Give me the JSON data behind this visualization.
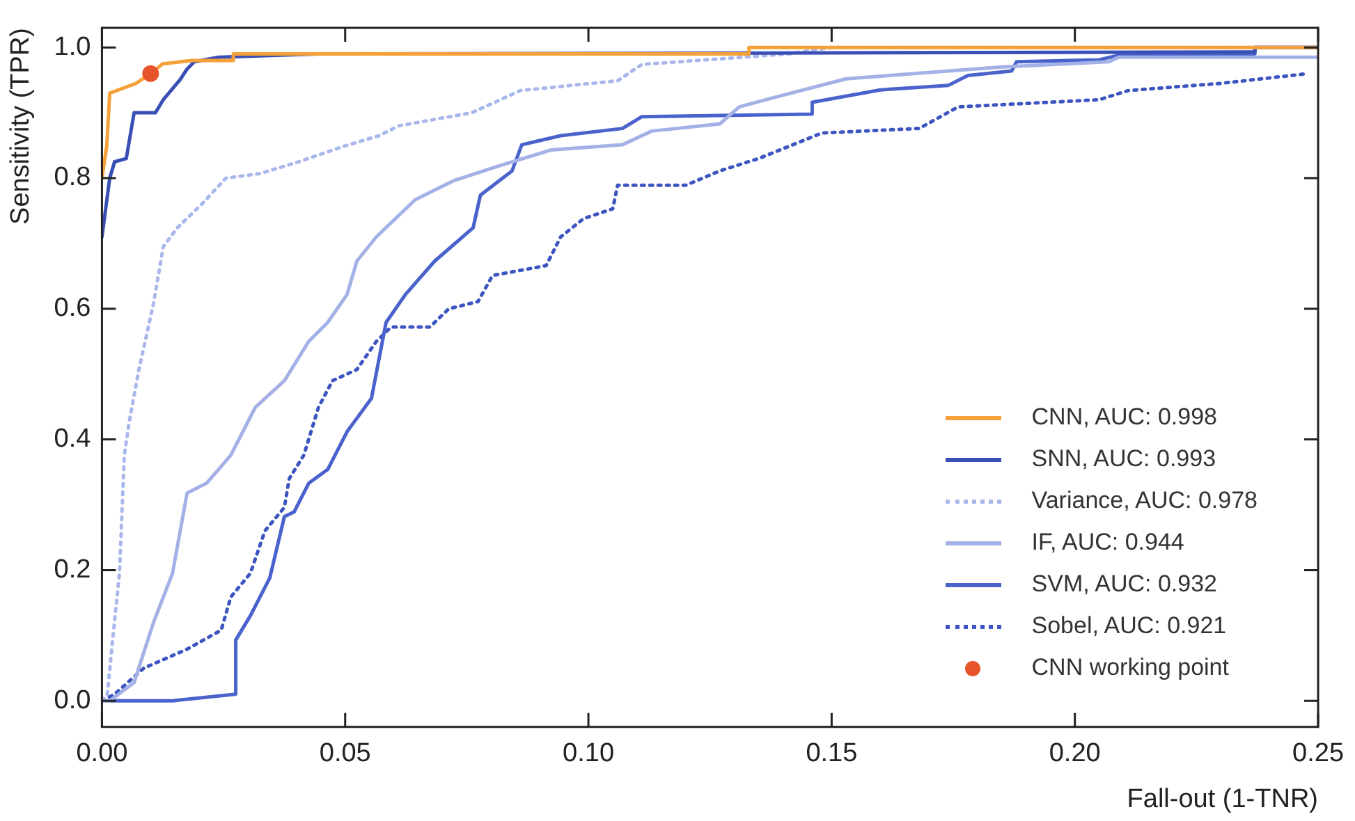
{
  "chart_data": {
    "type": "line",
    "xlabel": "Fall-out (1-TNR)",
    "ylabel": "Sensitivity (TPR)",
    "xlim": [
      0,
      0.25
    ],
    "ylim": [
      -0.04,
      1.03
    ],
    "xticks": [
      {
        "value": 0,
        "label": "0.00"
      },
      {
        "value": 0.05,
        "label": "0.05"
      },
      {
        "value": 0.1,
        "label": "0.10"
      },
      {
        "value": 0.15,
        "label": "0.15"
      },
      {
        "value": 0.2,
        "label": "0.20"
      },
      {
        "value": 0.25,
        "label": "0.25"
      }
    ],
    "yticks": [
      {
        "value": 0,
        "label": "0.0"
      },
      {
        "value": 0.2,
        "label": "0.2"
      },
      {
        "value": 0.4,
        "label": "0.4"
      },
      {
        "value": 0.6,
        "label": "0.6"
      },
      {
        "value": 0.8,
        "label": "0.8"
      },
      {
        "value": 1,
        "label": "1.0"
      }
    ],
    "grid": false,
    "legend": "bottom right",
    "marker": "none",
    "series": [
      {
        "name": "CNN, AUC: 0.998",
        "color": "#f5a13a",
        "line_style": "solid",
        "x": [
          0,
          0.001,
          0.0016,
          0.007,
          0.01,
          0.0125,
          0.0185,
          0.027,
          0.027,
          0.133,
          0.133,
          0.25
        ],
        "values": [
          0.8,
          0.85,
          0.93,
          0.945,
          0.96,
          0.975,
          0.98,
          0.98,
          0.99,
          0.99,
          1.0,
          1.0
        ]
      },
      {
        "name": "SNN, AUC: 0.993",
        "color": "#3a4fb5",
        "line_style": "solid",
        "x": [
          0,
          0.0016,
          0.0026,
          0.005,
          0.0066,
          0.011,
          0.0126,
          0.016,
          0.0175,
          0.019,
          0.024,
          0.0445,
          0.237,
          0.237,
          0.25
        ],
        "values": [
          0.71,
          0.8,
          0.825,
          0.83,
          0.9,
          0.9,
          0.92,
          0.95,
          0.967,
          0.978,
          0.985,
          0.99,
          0.993,
          1.0,
          1.0
        ]
      },
      {
        "name": "Variance, AUC: 0.978",
        "color": "#a9b8ec",
        "line_style": "dotted",
        "x": [
          0,
          0.0011,
          0.0021,
          0.0036,
          0.0046,
          0.0056,
          0.0076,
          0.0106,
          0.0126,
          0.0155,
          0.0205,
          0.0255,
          0.0325,
          0.0405,
          0.049,
          0.057,
          0.061,
          0.076,
          0.086,
          0.106,
          0.111,
          0.141,
          0.15,
          0.25
        ],
        "values": [
          0,
          0.01,
          0.086,
          0.195,
          0.376,
          0.427,
          0.507,
          0.608,
          0.695,
          0.724,
          0.76,
          0.8,
          0.807,
          0.825,
          0.847,
          0.865,
          0.88,
          0.9,
          0.934,
          0.949,
          0.974,
          0.99,
          1.0,
          1.0
        ]
      },
      {
        "name": "IF, AUC: 0.944",
        "color": "#a3b1e6",
        "line_style": "solid",
        "x": [
          0,
          0.0016,
          0.0066,
          0.0106,
          0.0145,
          0.0175,
          0.0215,
          0.0265,
          0.0315,
          0.0375,
          0.0425,
          0.0464,
          0.0504,
          0.0524,
          0.0564,
          0.0644,
          0.0723,
          0.0813,
          0.0923,
          0.107,
          0.113,
          0.127,
          0.131,
          0.139,
          0.153,
          0.185,
          0.207,
          0.209,
          0.25
        ],
        "values": [
          0,
          0,
          0.028,
          0.12,
          0.195,
          0.318,
          0.333,
          0.376,
          0.449,
          0.49,
          0.55,
          0.579,
          0.622,
          0.673,
          0.71,
          0.767,
          0.796,
          0.818,
          0.843,
          0.851,
          0.872,
          0.883,
          0.909,
          0.925,
          0.952,
          0.97,
          0.978,
          0.985,
          0.985
        ]
      },
      {
        "name": "SVM, AUC: 0.932",
        "color": "#4a63cc",
        "line_style": "solid",
        "x": [
          0,
          0.0145,
          0.0275,
          0.0275,
          0.0305,
          0.0345,
          0.0375,
          0.0395,
          0.0425,
          0.0464,
          0.0504,
          0.0554,
          0.0584,
          0.0624,
          0.0684,
          0.0763,
          0.0778,
          0.0843,
          0.0863,
          0.0943,
          0.107,
          0.111,
          0.146,
          0.146,
          0.16,
          0.174,
          0.178,
          0.187,
          0.188,
          0.205,
          0.209,
          0.237,
          0.237,
          0.25
        ],
        "values": [
          0,
          0,
          0.01,
          0.093,
          0.13,
          0.188,
          0.282,
          0.289,
          0.333,
          0.354,
          0.412,
          0.463,
          0.579,
          0.622,
          0.673,
          0.724,
          0.774,
          0.811,
          0.851,
          0.865,
          0.876,
          0.894,
          0.898,
          0.916,
          0.935,
          0.942,
          0.957,
          0.964,
          0.978,
          0.981,
          0.988,
          0.99,
          1.0,
          1.0
        ]
      },
      {
        "name": "Sobel, AUC: 0.921",
        "color": "#3d55c0",
        "line_style": "dotted",
        "x": [
          0,
          0.0026,
          0.0086,
          0.0175,
          0.0245,
          0.0265,
          0.0305,
          0.0335,
          0.0375,
          0.0385,
          0.0415,
          0.0445,
          0.0474,
          0.0524,
          0.0564,
          0.0594,
          0.0674,
          0.0713,
          0.0773,
          0.0803,
          0.0913,
          0.0943,
          0.099,
          0.105,
          0.106,
          0.12,
          0.127,
          0.135,
          0.148,
          0.168,
          0.176,
          0.205,
          0.211,
          0.23,
          0.248
        ],
        "values": [
          0,
          0.01,
          0.05,
          0.079,
          0.108,
          0.159,
          0.195,
          0.26,
          0.296,
          0.34,
          0.376,
          0.449,
          0.49,
          0.507,
          0.55,
          0.572,
          0.572,
          0.6,
          0.611,
          0.651,
          0.666,
          0.71,
          0.738,
          0.753,
          0.789,
          0.789,
          0.811,
          0.83,
          0.869,
          0.876,
          0.909,
          0.92,
          0.934,
          0.945,
          0.96
        ]
      },
      {
        "name": "CNN working point",
        "type": "scatter",
        "marker": "circle",
        "color": "#e8542a",
        "x": [
          0.01
        ],
        "values": [
          0.96
        ]
      }
    ]
  }
}
